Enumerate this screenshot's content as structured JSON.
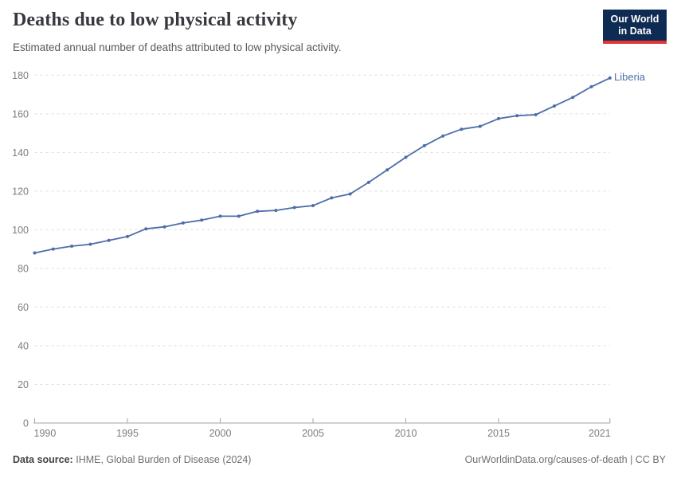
{
  "header": {
    "title": "Deaths due to low physical activity",
    "subtitle": "Estimated annual number of deaths attributed to low physical activity.",
    "logo": {
      "line1": "Our World",
      "line2": "in Data"
    }
  },
  "chart_data": {
    "type": "line",
    "title": "Deaths due to low physical activity",
    "subtitle": "Estimated annual number of deaths attributed to low physical activity.",
    "xlabel": "",
    "ylabel": "",
    "xlim": [
      1990,
      2021
    ],
    "ylim": [
      0,
      180
    ],
    "xticks": [
      1990,
      1995,
      2000,
      2005,
      2010,
      2015,
      2021
    ],
    "yticks": [
      0,
      20,
      40,
      60,
      80,
      100,
      120,
      140,
      160,
      180
    ],
    "grid": "horizontal-dashed",
    "legend_position": "end-of-line-label",
    "series": [
      {
        "name": "Liberia",
        "color": "#4c6ea8",
        "x": [
          1990,
          1991,
          1992,
          1993,
          1994,
          1995,
          1996,
          1997,
          1998,
          1999,
          2000,
          2001,
          2002,
          2003,
          2004,
          2005,
          2006,
          2007,
          2008,
          2009,
          2010,
          2011,
          2012,
          2013,
          2014,
          2015,
          2016,
          2017,
          2018,
          2019,
          2020,
          2021
        ],
        "values": [
          88,
          90,
          91.5,
          92.5,
          94.5,
          96.5,
          100.5,
          101.5,
          103.5,
          105,
          107,
          107,
          109.5,
          110,
          111.5,
          112.5,
          116.5,
          118.5,
          124.5,
          131,
          137.5,
          143.5,
          148.5,
          152,
          153.5,
          157.5,
          159,
          159.5,
          164,
          168.5,
          174,
          178.5
        ]
      }
    ]
  },
  "footer": {
    "source_label": "Data source:",
    "source_text": "IHME, Global Burden of Disease (2024)",
    "credit": "OurWorldinData.org/causes-of-death | CC BY"
  },
  "colors": {
    "line": "#4c6ea8",
    "entity_label": "#4c6ea8",
    "gridline": "#dcdcdc",
    "axis_line": "#a3a3a3",
    "tick_label": "#7d7d82",
    "title": "#38383f",
    "subtitle": "#58585f",
    "logo_bg": "#0e2b53",
    "logo_red": "#e23636",
    "footer_text": "#6f6f74"
  }
}
